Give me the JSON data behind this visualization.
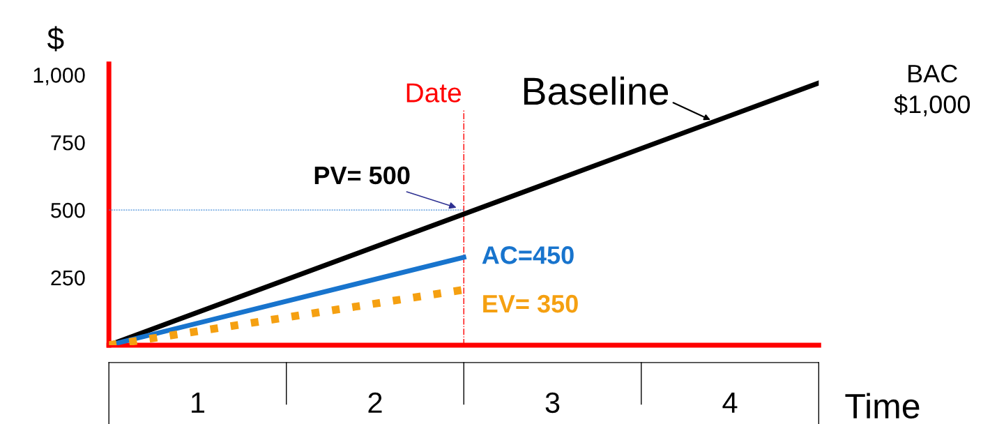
{
  "chart_data": {
    "type": "line",
    "ylabel": "$",
    "xlabel": "Time",
    "xlim": [
      0,
      4
    ],
    "xticks": [
      {
        "value": 0.5,
        "label": "1"
      },
      {
        "value": 1.5,
        "label": "2"
      },
      {
        "value": 2.5,
        "label": "3"
      },
      {
        "value": 3.5,
        "label": "4"
      }
    ],
    "ylim": [
      0,
      1040
    ],
    "yticks": [
      250,
      500,
      750,
      {
        "value": 1000,
        "label": "1,000"
      }
    ],
    "grid": false,
    "legend": false,
    "series": [
      {
        "color": "#000000",
        "x": [
          0,
          4
        ],
        "values": [
          0,
          970
        ],
        "line_style": "solid"
      },
      {
        "color": "#1874cd",
        "x": [
          0,
          2
        ],
        "values": [
          0,
          325
        ],
        "line_style": "solid"
      },
      {
        "color": "#f5a011",
        "x": [
          0,
          2
        ],
        "values": [
          0,
          205
        ],
        "line_style": "dotted"
      },
      {
        "color": "#4a90d9",
        "x": [
          0,
          2
        ],
        "values": [
          500,
          500
        ],
        "line_style": "dotted"
      }
    ],
    "ref_lines": [
      {
        "axis": "x",
        "value": 2,
        "label": "Date",
        "color": "#ff0000",
        "line_style": "dashed"
      }
    ],
    "annotations": [
      {
        "text": "Baseline",
        "x": 3.41,
        "y": 827
      },
      {
        "text": "PV= 500",
        "x": 2,
        "y": 500
      },
      "AC=450",
      "EV= 350",
      "BAC\n$1,000"
    ]
  }
}
